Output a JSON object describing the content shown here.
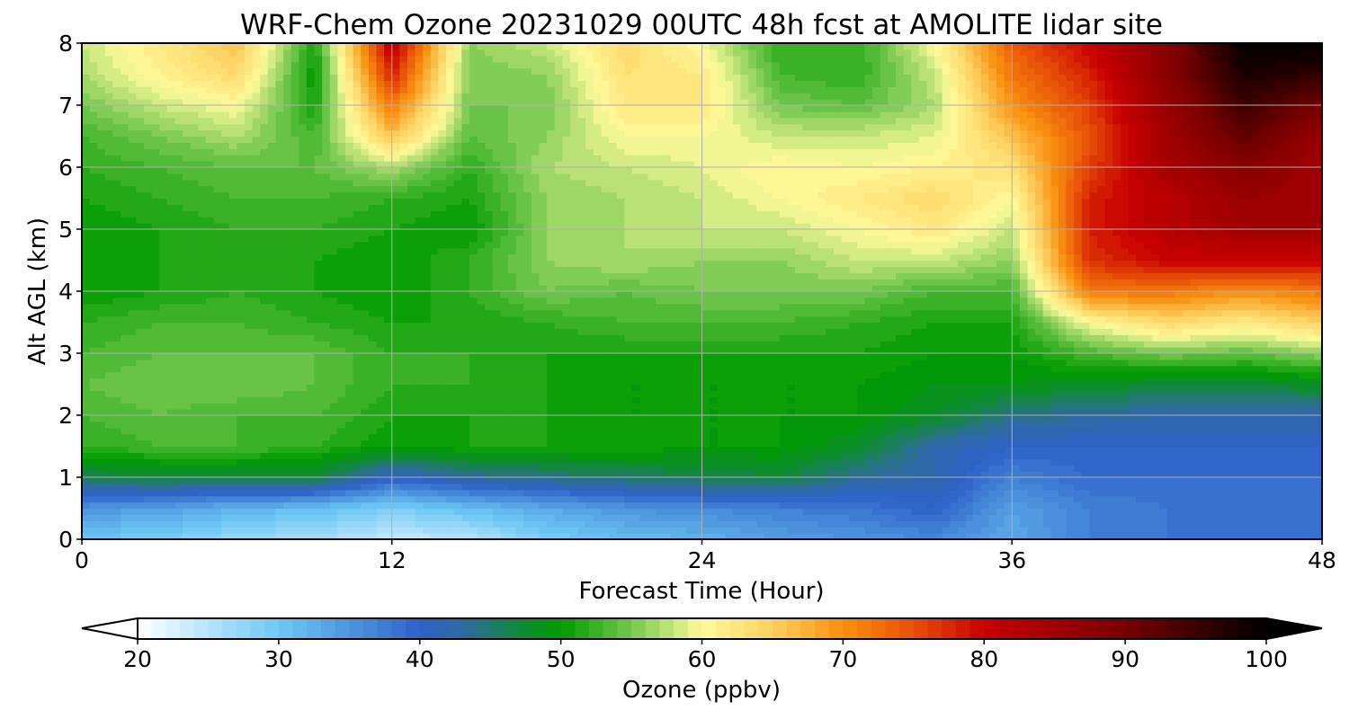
{
  "chart_data": {
    "type": "heatmap",
    "title": "WRF-Chem Ozone  20231029 00UTC 48h fcst at AMOLITE lidar site",
    "xlabel": "Forecast Time (Hour)",
    "ylabel": "Alt AGL (km)",
    "xlim": [
      0,
      48
    ],
    "ylim": [
      0,
      8
    ],
    "xticks": [
      "0",
      "12",
      "24",
      "36",
      "48"
    ],
    "yticks": [
      "0",
      "1",
      "2",
      "3",
      "4",
      "5",
      "6",
      "7",
      "8"
    ],
    "grid": true,
    "colorbar": {
      "label": "Ozone  (ppbv)",
      "range": [
        20,
        100
      ],
      "ticks": [
        "20",
        "30",
        "40",
        "50",
        "60",
        "70",
        "80",
        "90",
        "100"
      ],
      "extend": "both",
      "orientation": "horizontal",
      "stops": [
        {
          "value": 20,
          "color": "#ffffff"
        },
        {
          "value": 30,
          "color": "#6ec8f5"
        },
        {
          "value": 40,
          "color": "#2e62c8"
        },
        {
          "value": 43,
          "color": "#2f6aa0"
        },
        {
          "value": 47,
          "color": "#118a3a"
        },
        {
          "value": 50,
          "color": "#009a00"
        },
        {
          "value": 55,
          "color": "#74c84e"
        },
        {
          "value": 60,
          "color": "#fffa9b"
        },
        {
          "value": 65,
          "color": "#fdd060"
        },
        {
          "value": 70,
          "color": "#f99010"
        },
        {
          "value": 75,
          "color": "#e85008"
        },
        {
          "value": 80,
          "color": "#c80000"
        },
        {
          "value": 90,
          "color": "#780000"
        },
        {
          "value": 100,
          "color": "#000000"
        }
      ]
    },
    "x": [
      0,
      3,
      6,
      9,
      12,
      15,
      18,
      21,
      24,
      27,
      30,
      33,
      36,
      39,
      42,
      45,
      48
    ],
    "y": [
      0,
      0.5,
      1,
      1.5,
      2,
      2.5,
      3,
      3.5,
      4,
      4.5,
      5,
      5.5,
      6,
      6.5,
      7,
      7.5,
      8
    ],
    "z": [
      [
        30,
        29,
        27,
        26,
        24,
        25,
        29,
        31,
        32,
        34,
        35,
        36,
        33,
        37,
        38,
        38,
        38
      ],
      [
        35,
        34,
        32,
        31,
        29,
        31,
        33,
        35,
        36,
        37,
        38,
        40,
        34,
        37,
        38,
        38,
        38
      ],
      [
        46,
        47,
        47,
        47,
        40,
        43,
        44,
        45,
        46,
        47,
        43,
        42,
        37,
        39,
        39,
        39,
        39
      ],
      [
        52,
        53,
        53,
        52,
        50,
        51,
        51,
        51,
        50,
        50,
        48,
        42,
        40,
        40,
        40,
        40,
        40
      ],
      [
        53,
        54,
        53,
        53,
        51,
        51,
        51,
        50,
        50,
        50,
        50,
        48,
        44,
        43,
        42,
        42,
        42
      ],
      [
        54,
        55,
        55,
        54,
        52,
        52,
        51,
        50,
        50,
        50,
        50,
        49,
        49,
        48,
        47,
        47,
        48
      ],
      [
        53,
        54,
        54,
        54,
        52,
        52,
        51,
        51,
        51,
        51,
        51,
        50,
        50,
        53,
        55,
        54,
        56
      ],
      [
        52,
        53,
        53,
        52,
        51,
        51,
        52,
        53,
        53,
        53,
        52,
        51,
        51,
        60,
        64,
        62,
        65
      ],
      [
        50,
        51,
        52,
        51,
        50,
        52,
        55,
        54,
        55,
        55,
        55,
        53,
        53,
        72,
        72,
        70,
        72
      ],
      [
        50,
        51,
        52,
        51,
        50,
        52,
        56,
        57,
        56,
        56,
        58,
        58,
        56,
        77,
        80,
        80,
        80
      ],
      [
        50,
        51,
        52,
        52,
        51,
        50,
        56,
        57,
        58,
        58,
        60,
        62,
        58,
        78,
        82,
        85,
        85
      ],
      [
        51,
        52,
        53,
        53,
        52,
        51,
        56,
        57,
        58,
        60,
        62,
        64,
        60,
        78,
        82,
        86,
        85
      ],
      [
        52,
        53,
        54,
        54,
        57,
        52,
        57,
        58,
        59,
        61,
        60,
        61,
        63,
        76,
        84,
        88,
        85
      ],
      [
        53,
        55,
        57,
        53,
        66,
        54,
        56,
        60,
        60,
        58,
        58,
        59,
        66,
        75,
        85,
        92,
        86
      ],
      [
        55,
        58,
        60,
        51,
        72,
        55,
        55,
        62,
        62,
        55,
        54,
        57,
        70,
        76,
        86,
        95,
        90
      ],
      [
        57,
        61,
        64,
        50,
        78,
        55,
        56,
        63,
        62,
        53,
        52,
        58,
        72,
        78,
        88,
        98,
        96
      ],
      [
        58,
        62,
        66,
        51,
        82,
        56,
        58,
        64,
        60,
        52,
        52,
        60,
        74,
        80,
        88,
        100,
        100
      ]
    ]
  }
}
